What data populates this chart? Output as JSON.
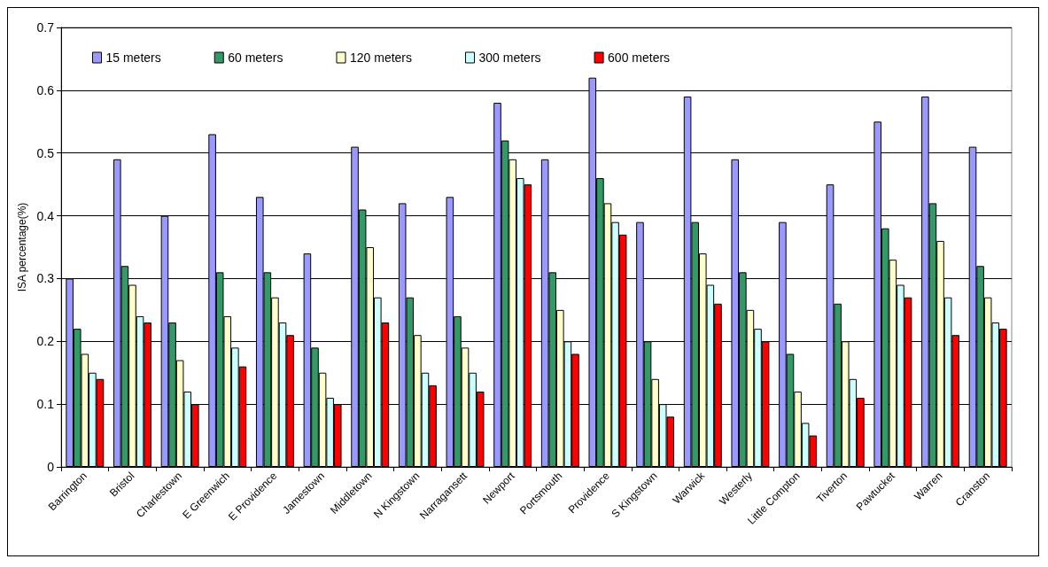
{
  "chart_data": {
    "type": "bar",
    "ylabel": "ISA percentage(%)",
    "categories": [
      "Barrington",
      "Bristol",
      "Charlestown",
      "E Greenwich",
      "E Providence",
      "Jamestown",
      "Middletown",
      "N Kingstown",
      "Narragansett",
      "Newport",
      "Portsmouth",
      "Providence",
      "S Kingstown",
      "Warwick",
      "Westerly",
      "Little Compton",
      "Tiverton",
      "Pawtucket",
      "Warren",
      "Cranston"
    ],
    "series": [
      {
        "name": "15 meters",
        "color": "#9999ff",
        "values": [
          0.3,
          0.49,
          0.4,
          0.53,
          0.43,
          0.34,
          0.51,
          0.42,
          0.43,
          0.58,
          0.49,
          0.62,
          0.39,
          0.59,
          0.49,
          0.39,
          0.45,
          0.55,
          0.59,
          0.51
        ]
      },
      {
        "name": "60 meters",
        "color": "#339966",
        "values": [
          0.22,
          0.32,
          0.23,
          0.31,
          0.31,
          0.19,
          0.41,
          0.27,
          0.24,
          0.52,
          0.31,
          0.46,
          0.2,
          0.39,
          0.31,
          0.18,
          0.26,
          0.38,
          0.42,
          0.32
        ]
      },
      {
        "name": "120 meters",
        "color": "#ffffcc",
        "values": [
          0.18,
          0.29,
          0.17,
          0.24,
          0.27,
          0.15,
          0.35,
          0.21,
          0.19,
          0.49,
          0.25,
          0.42,
          0.14,
          0.34,
          0.25,
          0.12,
          0.2,
          0.33,
          0.36,
          0.27
        ]
      },
      {
        "name": "300 meters",
        "color": "#ccffff",
        "values": [
          0.15,
          0.24,
          0.12,
          0.19,
          0.23,
          0.11,
          0.27,
          0.15,
          0.15,
          0.46,
          0.2,
          0.39,
          0.1,
          0.29,
          0.22,
          0.07,
          0.14,
          0.29,
          0.27,
          0.23
        ]
      },
      {
        "name": "600 meters",
        "color": "#ff0000",
        "values": [
          0.14,
          0.23,
          0.1,
          0.16,
          0.21,
          0.1,
          0.23,
          0.13,
          0.12,
          0.45,
          0.18,
          0.37,
          0.08,
          0.26,
          0.2,
          0.05,
          0.11,
          0.27,
          0.21,
          0.22
        ]
      }
    ],
    "ylim": [
      0,
      0.7
    ],
    "yticks": [
      0,
      0.1,
      0.2,
      0.3,
      0.4,
      0.5,
      0.6,
      0.7
    ],
    "grid": "y",
    "legend": "top left"
  }
}
